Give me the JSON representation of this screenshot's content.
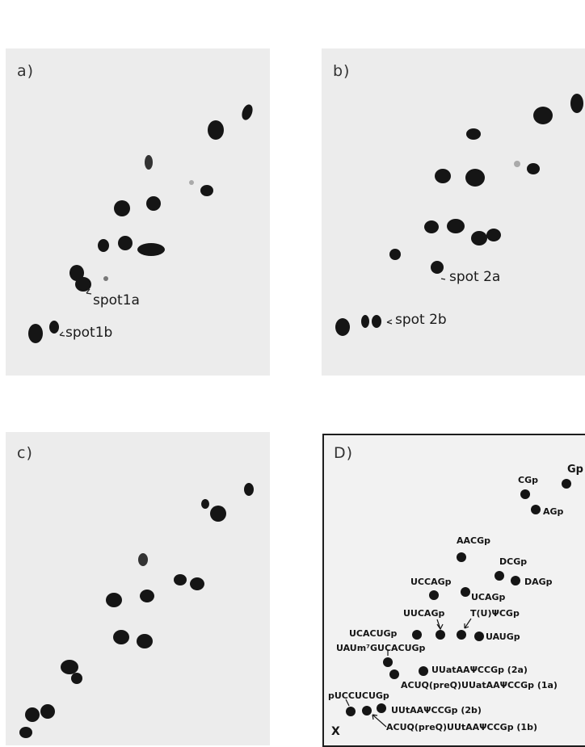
{
  "panels": {
    "a": {
      "label": "a)",
      "annotations": [
        "spot1a",
        "spot1b"
      ]
    },
    "b": {
      "label": "b)",
      "annotations": [
        "spot 2a",
        "spot 2b"
      ]
    },
    "c": {
      "label": "c)"
    },
    "d": {
      "label": "D)",
      "origin_marker": "X",
      "spot_labels": [
        "Gp",
        "CGp",
        "AGp",
        "AACGp",
        "DCGp",
        "DAGp",
        "UCCAGp",
        "UCAGp",
        "UUCAGp",
        "T(U)ΨCGp",
        "UCACUGp",
        "UAUGp",
        "UAUm⁷GUCACUGp",
        "UUatAAΨCCGp (2a)",
        "ACUQ(preQ)UUatAAΨCCGp (1a)",
        "pUCCUCUGp",
        "UUtAAΨCCGp (2b)",
        "ACUQ(preQ)UUtAAΨCCGp (1b)"
      ]
    }
  }
}
